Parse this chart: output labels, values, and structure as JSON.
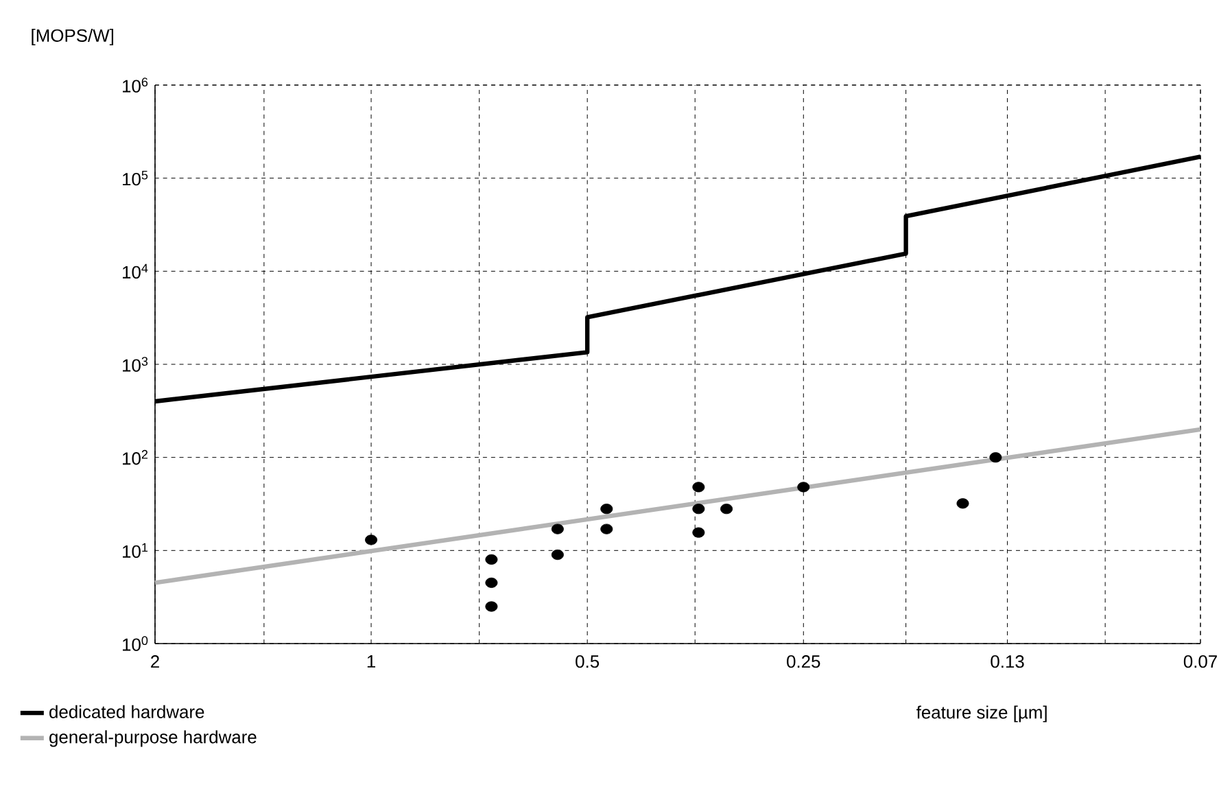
{
  "chart_data": {
    "type": "scatter",
    "ylabel": "[MOPS/W]",
    "xlabel": "feature size [µm]",
    "log": "xy",
    "grid": true,
    "legend": "bottom left",
    "line_style": "solid",
    "xlim": [
      2,
      0.07
    ],
    "ylim": [
      1,
      1000000
    ],
    "xticks": [
      2,
      {
        "value": 1.41,
        "label": null
      },
      1,
      {
        "value": 0.707,
        "label": null
      },
      0.5,
      {
        "value": 0.354,
        "label": null
      },
      0.25,
      {
        "value": 0.18,
        "label": null
      },
      0.13,
      {
        "value": 0.095,
        "label": null
      },
      0.07
    ],
    "yticks": [
      {
        "value": 1,
        "label": "10$^{0}$"
      },
      {
        "value": 10,
        "label": "10$^{1}$"
      },
      {
        "value": 100,
        "label": "10$^{2}$"
      },
      {
        "value": 1000,
        "label": "10$^{3}$"
      },
      {
        "value": 10000,
        "label": "10$^{4}$"
      },
      {
        "value": 100000,
        "label": "10$^{5}$"
      },
      {
        "value": 1000000,
        "label": "10$^{6}$"
      }
    ],
    "series": [
      {
        "name": "dedicated hardware",
        "type": "line",
        "color": "#000000",
        "x": [
          2,
          0.5,
          0.5,
          0.18,
          0.18,
          0.07
        ],
        "values": [
          400,
          1350,
          3200,
          15500,
          39000,
          170000
        ]
      },
      {
        "name": "general-purpose hardware",
        "type": "line",
        "color": "#b3b3b3",
        "x": [
          2,
          0.07
        ],
        "values": [
          4.5,
          200
        ]
      },
      {
        "color": "#000000",
        "x": [
          1,
          0.68,
          0.68,
          0.68,
          0.55,
          0.55,
          0.47,
          0.47,
          0.35,
          0.35,
          0.35,
          0.32,
          0.25,
          0.15,
          0.135
        ],
        "values": [
          13,
          8,
          4.5,
          2.5,
          17,
          9,
          28,
          17,
          48,
          28,
          15.6,
          28,
          48,
          32,
          100
        ]
      }
    ]
  }
}
